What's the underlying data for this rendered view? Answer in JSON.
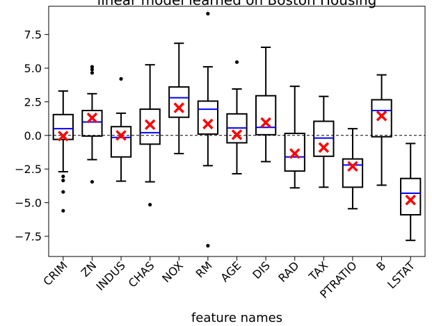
{
  "chart_data": {
    "type": "box",
    "title": "linear model learned on Boston Housing",
    "xlabel": "feature names",
    "ylabel": "",
    "ylim": [
      -9.0,
      9.6
    ],
    "yticks": [
      -7.5,
      -5.0,
      -2.5,
      0.0,
      2.5,
      5.0,
      7.5
    ],
    "ytick_labels": [
      "−7.5",
      "−5.0",
      "−2.5",
      "0.0",
      "2.5",
      "5.0",
      "7.5"
    ],
    "reference_line": 0.0,
    "categories": [
      "CRIM",
      "ZN",
      "INDUS",
      "CHAS",
      "NOX",
      "RM",
      "AGE",
      "DIS",
      "RAD",
      "TAX",
      "PTRATIO",
      "B",
      "LSTAT"
    ],
    "boxes": [
      {
        "whislo": -2.7,
        "q1": -0.3,
        "med": 0.5,
        "q3": 1.55,
        "whishi": 3.3,
        "mean": -0.05,
        "fliers": [
          -3.05,
          -3.35,
          -4.2,
          -5.6
        ]
      },
      {
        "whislo": -1.8,
        "q1": -0.05,
        "med": 1.0,
        "q3": 1.85,
        "whishi": 3.1,
        "mean": 1.3,
        "fliers": [
          4.65,
          4.9,
          5.1,
          -3.45
        ]
      },
      {
        "whislo": -3.4,
        "q1": -1.6,
        "med": -0.15,
        "q3": 0.65,
        "whishi": 1.65,
        "mean": 0.0,
        "fliers": [
          4.2
        ]
      },
      {
        "whislo": -3.45,
        "q1": -0.65,
        "med": 0.2,
        "q3": 1.95,
        "whishi": 5.25,
        "mean": 0.8,
        "fliers": [
          -5.15
        ]
      },
      {
        "whislo": -1.35,
        "q1": 1.35,
        "med": 2.8,
        "q3": 3.6,
        "whishi": 6.85,
        "mean": 2.05,
        "fliers": []
      },
      {
        "whislo": -2.25,
        "q1": 0.1,
        "med": 1.95,
        "q3": 2.55,
        "whishi": 5.1,
        "mean": 0.85,
        "fliers": [
          9.05,
          -8.2
        ]
      },
      {
        "whislo": -2.85,
        "q1": -0.55,
        "med": 0.55,
        "q3": 1.6,
        "whishi": 3.45,
        "mean": 0.05,
        "fliers": [
          5.45
        ]
      },
      {
        "whislo": -1.95,
        "q1": 0.05,
        "med": 0.6,
        "q3": 2.95,
        "whishi": 6.55,
        "mean": 0.95,
        "fliers": []
      },
      {
        "whislo": -3.9,
        "q1": -2.65,
        "med": -1.6,
        "q3": 0.15,
        "whishi": 3.65,
        "mean": -1.35,
        "fliers": []
      },
      {
        "whislo": -3.85,
        "q1": -1.55,
        "med": -0.2,
        "q3": 1.05,
        "whishi": 2.9,
        "mean": -0.9,
        "fliers": []
      },
      {
        "whislo": -5.45,
        "q1": -3.85,
        "med": -2.2,
        "q3": -1.75,
        "whishi": 0.5,
        "mean": -2.3,
        "fliers": []
      },
      {
        "whislo": -3.7,
        "q1": -0.1,
        "med": 1.85,
        "q3": 2.65,
        "whishi": 4.5,
        "mean": 1.45,
        "fliers": []
      },
      {
        "whislo": -7.8,
        "q1": -5.9,
        "med": -4.3,
        "q3": -3.2,
        "whishi": -0.6,
        "mean": -4.8,
        "fliers": []
      }
    ],
    "colors": {
      "box": "#000000",
      "median": "#0000ff",
      "mean": "#ff0000",
      "reference_line": "#000000"
    },
    "legend": "none",
    "grid": false
  }
}
